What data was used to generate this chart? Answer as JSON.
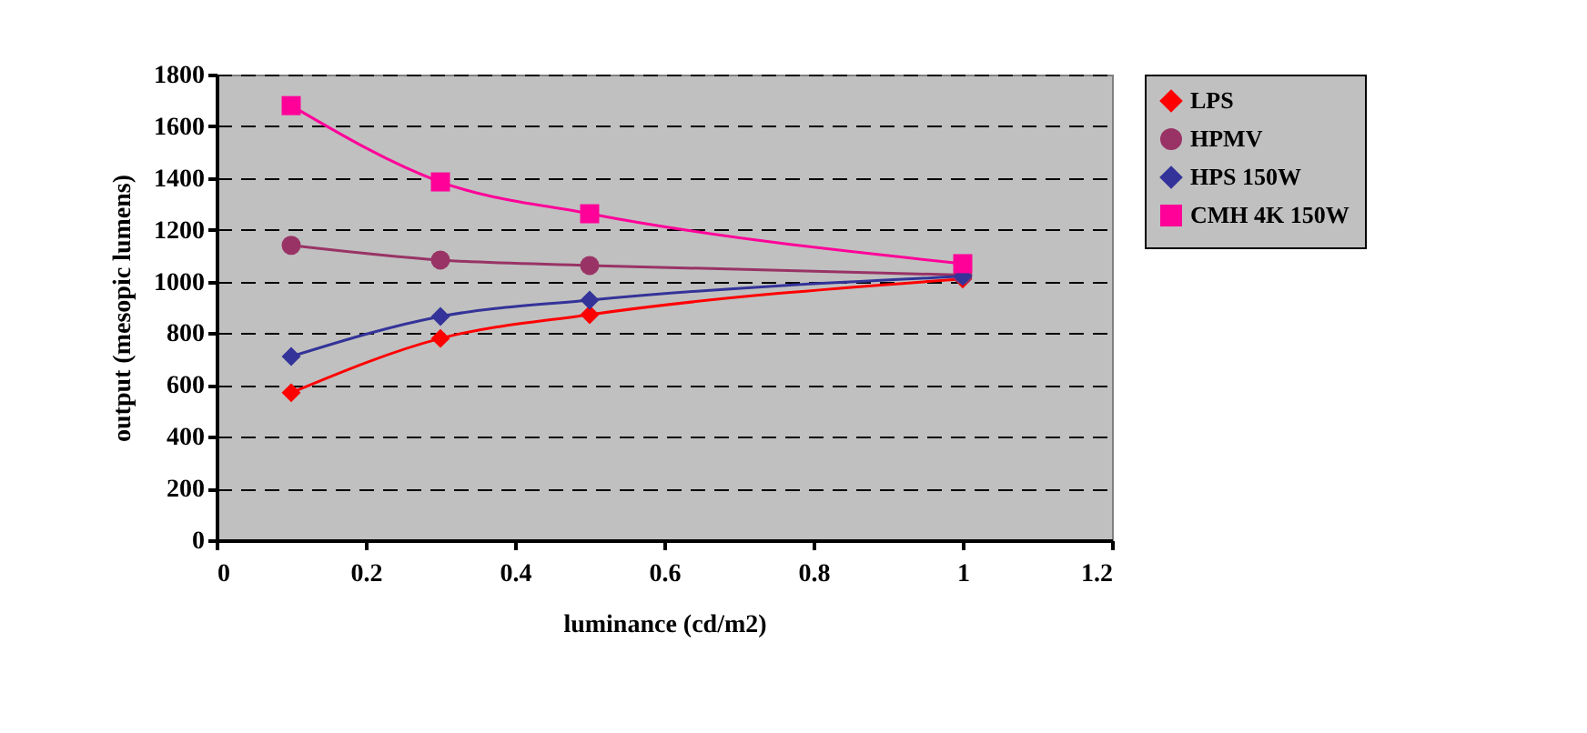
{
  "chart_data": {
    "type": "line",
    "xlabel": "luminance (cd/m2)",
    "ylabel": "output (mesopic lumens)",
    "x": [
      0.1,
      0.3,
      0.5,
      1
    ],
    "series": [
      {
        "name": "LPS",
        "color": "#ff0000",
        "marker": "diamond",
        "values": [
          570,
          780,
          872,
          1010
        ]
      },
      {
        "name": "HPMV",
        "color": "#993366",
        "marker": "circle",
        "values": [
          1140,
          1083,
          1062,
          1025
        ]
      },
      {
        "name": "HPS 150W",
        "color": "#333399",
        "marker": "diamond",
        "values": [
          710,
          865,
          928,
          1020
        ]
      },
      {
        "name": "CMH 4K 150W",
        "color": "#ff0099",
        "marker": "square",
        "values": [
          1680,
          1385,
          1262,
          1069
        ]
      }
    ],
    "xlim": [
      0,
      1.2
    ],
    "xticks": [
      0,
      0.2,
      0.4,
      0.6,
      0.8,
      1,
      1.2
    ],
    "ylim": [
      0,
      1800
    ],
    "yticks": [
      0,
      200,
      400,
      600,
      800,
      1000,
      1200,
      1400,
      1600,
      1800
    ],
    "grid": "y",
    "legend": "right"
  }
}
